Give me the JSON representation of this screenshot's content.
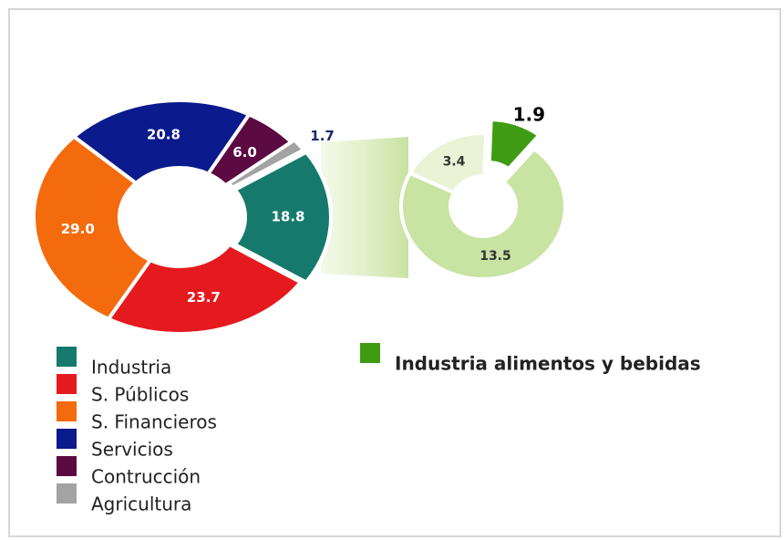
{
  "chart_data": [
    {
      "type": "donut",
      "categories": [
        "Industria",
        "S. Públicos",
        "S. Financieros",
        "Servicios",
        "Contrucción",
        "Agricultura"
      ],
      "values": [
        18.8,
        23.7,
        29.0,
        20.8,
        6.0,
        1.7
      ],
      "value_labels": [
        "18.8",
        "23.7",
        "29.0",
        "20.8",
        "6.0",
        "1.7"
      ],
      "colors": [
        "#157a6c",
        "#e51a1e",
        "#f46b0e",
        "#0b1a8c",
        "#5c0a42",
        "#a3a3a3"
      ]
    },
    {
      "type": "donut",
      "categories": [
        "Industria alimentos y bebidas",
        null,
        null
      ],
      "values": [
        1.9,
        13.5,
        3.4
      ],
      "value_labels": [
        "1.9",
        "13.5",
        "3.4"
      ],
      "colors": [
        "#3f9c12",
        "#c9e3a2",
        "#eaf3d6"
      ]
    }
  ]
}
